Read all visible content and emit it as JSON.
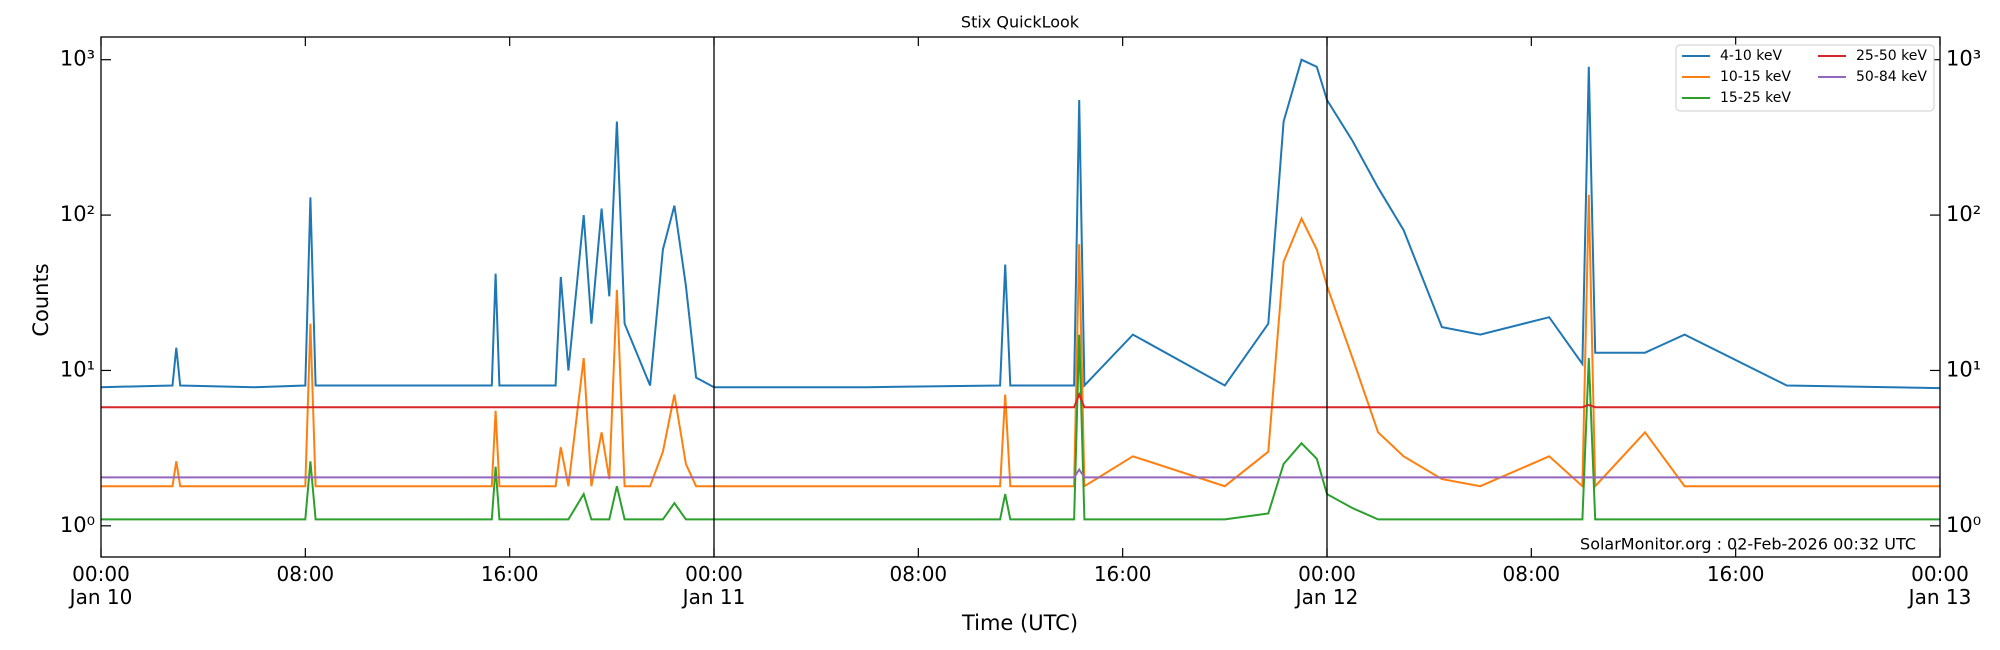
{
  "chart_data": {
    "type": "line",
    "title": "Stix QuickLook",
    "xlabel": "Time (UTC)",
    "ylabel": "Counts",
    "annotation": "SolarMonitor.org : 02-Feb-2026 00:32 UTC",
    "log_y": true,
    "legend": "upper right",
    "x": [
      "Jan 10 00:00",
      "Jan 10 02:48",
      "Jan 10 02:57",
      "Jan 10 03:06",
      "Jan 10 06:00",
      "Jan 10 08:00",
      "Jan 10 08:12",
      "Jan 10 08:24",
      "Jan 10 12:00",
      "Jan 10 15:18",
      "Jan 10 15:27",
      "Jan 10 15:36",
      "Jan 10 17:48",
      "Jan 10 18:00",
      "Jan 10 18:18",
      "Jan 10 18:54",
      "Jan 10 19:12",
      "Jan 10 19:36",
      "Jan 10 19:54",
      "Jan 10 20:12",
      "Jan 10 20:30",
      "Jan 10 21:30",
      "Jan 10 22:00",
      "Jan 10 22:27",
      "Jan 10 22:54",
      "Jan 10 23:18",
      "Jan 11 00:00",
      "Jan 11 06:00",
      "Jan 11 11:12",
      "Jan 11 11:24",
      "Jan 11 11:36",
      "Jan 11 14:06",
      "Jan 11 14:18",
      "Jan 11 14:30",
      "Jan 11 16:24",
      "Jan 11 20:00",
      "Jan 11 21:42",
      "Jan 11 22:18",
      "Jan 11 23:00",
      "Jan 11 23:36",
      "Jan 12 00:00",
      "Jan 12 01:00",
      "Jan 12 02:00",
      "Jan 12 03:00",
      "Jan 12 04:30",
      "Jan 12 06:00",
      "Jan 12 08:42",
      "Jan 12 10:00",
      "Jan 12 10:15",
      "Jan 12 10:30",
      "Jan 12 12:27",
      "Jan 12 14:00",
      "Jan 12 18:00",
      "Jan 13 00:00"
    ],
    "series": [
      {
        "name": "4-10 keV",
        "color": "#1f77b4",
        "values": [
          7.8,
          8,
          14,
          8,
          7.8,
          8,
          130,
          8,
          8,
          8,
          42,
          8,
          8,
          40,
          10,
          100,
          20,
          110,
          30,
          400,
          20,
          8,
          60,
          115,
          35,
          9,
          7.8,
          7.8,
          8,
          48,
          8,
          8,
          550,
          8,
          17,
          8,
          20,
          400,
          1000,
          900,
          550,
          300,
          150,
          80,
          19,
          17,
          22,
          11,
          900,
          13,
          13,
          17,
          8,
          7.7
        ]
      },
      {
        "name": "10-15 keV",
        "color": "#ff7f0e",
        "values": [
          1.8,
          1.8,
          2.6,
          1.8,
          1.8,
          1.8,
          20,
          1.8,
          1.8,
          1.8,
          5.5,
          1.8,
          1.8,
          3.2,
          1.8,
          12,
          1.8,
          4,
          2,
          33,
          1.8,
          1.8,
          3,
          7,
          2.5,
          1.8,
          1.8,
          1.8,
          1.8,
          7,
          1.8,
          1.8,
          65,
          1.8,
          2.8,
          1.8,
          3,
          50,
          95,
          60,
          35,
          12,
          4,
          2.8,
          2,
          1.8,
          2.8,
          1.8,
          135,
          1.8,
          4,
          1.8,
          1.8,
          1.8
        ]
      },
      {
        "name": "15-25 keV",
        "color": "#2ca02c",
        "values": [
          1.1,
          1.1,
          1.1,
          1.1,
          1.1,
          1.1,
          2.6,
          1.1,
          1.1,
          1.1,
          2.4,
          1.1,
          1.1,
          1.1,
          1.1,
          1.6,
          1.1,
          1.1,
          1.1,
          1.8,
          1.1,
          1.1,
          1.1,
          1.4,
          1.1,
          1.1,
          1.1,
          1.1,
          1.1,
          1.6,
          1.1,
          1.1,
          17,
          1.1,
          1.1,
          1.1,
          1.2,
          2.5,
          3.4,
          2.7,
          1.6,
          1.3,
          1.1,
          1.1,
          1.1,
          1.1,
          1.1,
          1.1,
          12,
          1.1,
          1.1,
          1.1,
          1.1,
          1.1
        ]
      },
      {
        "name": "25-50 keV",
        "color": "#d62728",
        "values": [
          5.8,
          5.8,
          5.8,
          5.8,
          5.8,
          5.8,
          5.8,
          5.8,
          5.8,
          5.8,
          5.8,
          5.8,
          5.8,
          5.8,
          5.8,
          5.8,
          5.8,
          5.8,
          5.8,
          5.8,
          5.8,
          5.8,
          5.8,
          5.8,
          5.8,
          5.8,
          5.8,
          5.8,
          5.8,
          5.8,
          5.8,
          5.8,
          7,
          5.8,
          5.8,
          5.8,
          5.8,
          5.8,
          5.8,
          5.8,
          5.8,
          5.8,
          5.8,
          5.8,
          5.8,
          5.8,
          5.8,
          5.8,
          6,
          5.8,
          5.8,
          5.8,
          5.8,
          5.8
        ]
      },
      {
        "name": "50-84 keV",
        "color": "#9467bd",
        "values": [
          2.05,
          2.05,
          2.05,
          2.05,
          2.05,
          2.05,
          2.05,
          2.05,
          2.05,
          2.05,
          2.05,
          2.05,
          2.05,
          2.05,
          2.05,
          2.05,
          2.05,
          2.05,
          2.05,
          2.05,
          2.05,
          2.05,
          2.05,
          2.05,
          2.05,
          2.05,
          2.05,
          2.05,
          2.05,
          2.05,
          2.05,
          2.05,
          2.3,
          2.05,
          2.05,
          2.05,
          2.05,
          2.05,
          2.05,
          2.05,
          2.05,
          2.05,
          2.05,
          2.05,
          2.05,
          2.05,
          2.05,
          2.05,
          2.05,
          2.05,
          2.05,
          2.05,
          2.05,
          2.05
        ]
      }
    ],
    "xlim": [
      "Jan 10 00:00",
      "Jan 13 00:00"
    ],
    "xticks": [
      {
        "value": "Jan 10 00:00",
        "label": "00:00\nJan 10"
      },
      {
        "value": "Jan 10 08:00",
        "label": "08:00"
      },
      {
        "value": "Jan 10 16:00",
        "label": "16:00"
      },
      {
        "value": "Jan 11 00:00",
        "label": "00:00\nJan 11"
      },
      {
        "value": "Jan 11 08:00",
        "label": "08:00"
      },
      {
        "value": "Jan 11 16:00",
        "label": "16:00"
      },
      {
        "value": "Jan 12 00:00",
        "label": "00:00\nJan 12"
      },
      {
        "value": "Jan 12 08:00",
        "label": "08:00"
      },
      {
        "value": "Jan 12 16:00",
        "label": "16:00"
      },
      {
        "value": "Jan 13 00:00",
        "label": "00:00\nJan 13"
      }
    ],
    "ylim": [
      0.63,
      1400
    ],
    "yticks": [
      {
        "value": 1,
        "label": "10⁰"
      },
      {
        "value": 10,
        "label": "10¹"
      },
      {
        "value": 100,
        "label": "10²"
      },
      {
        "value": 1000,
        "label": "10³"
      }
    ]
  }
}
